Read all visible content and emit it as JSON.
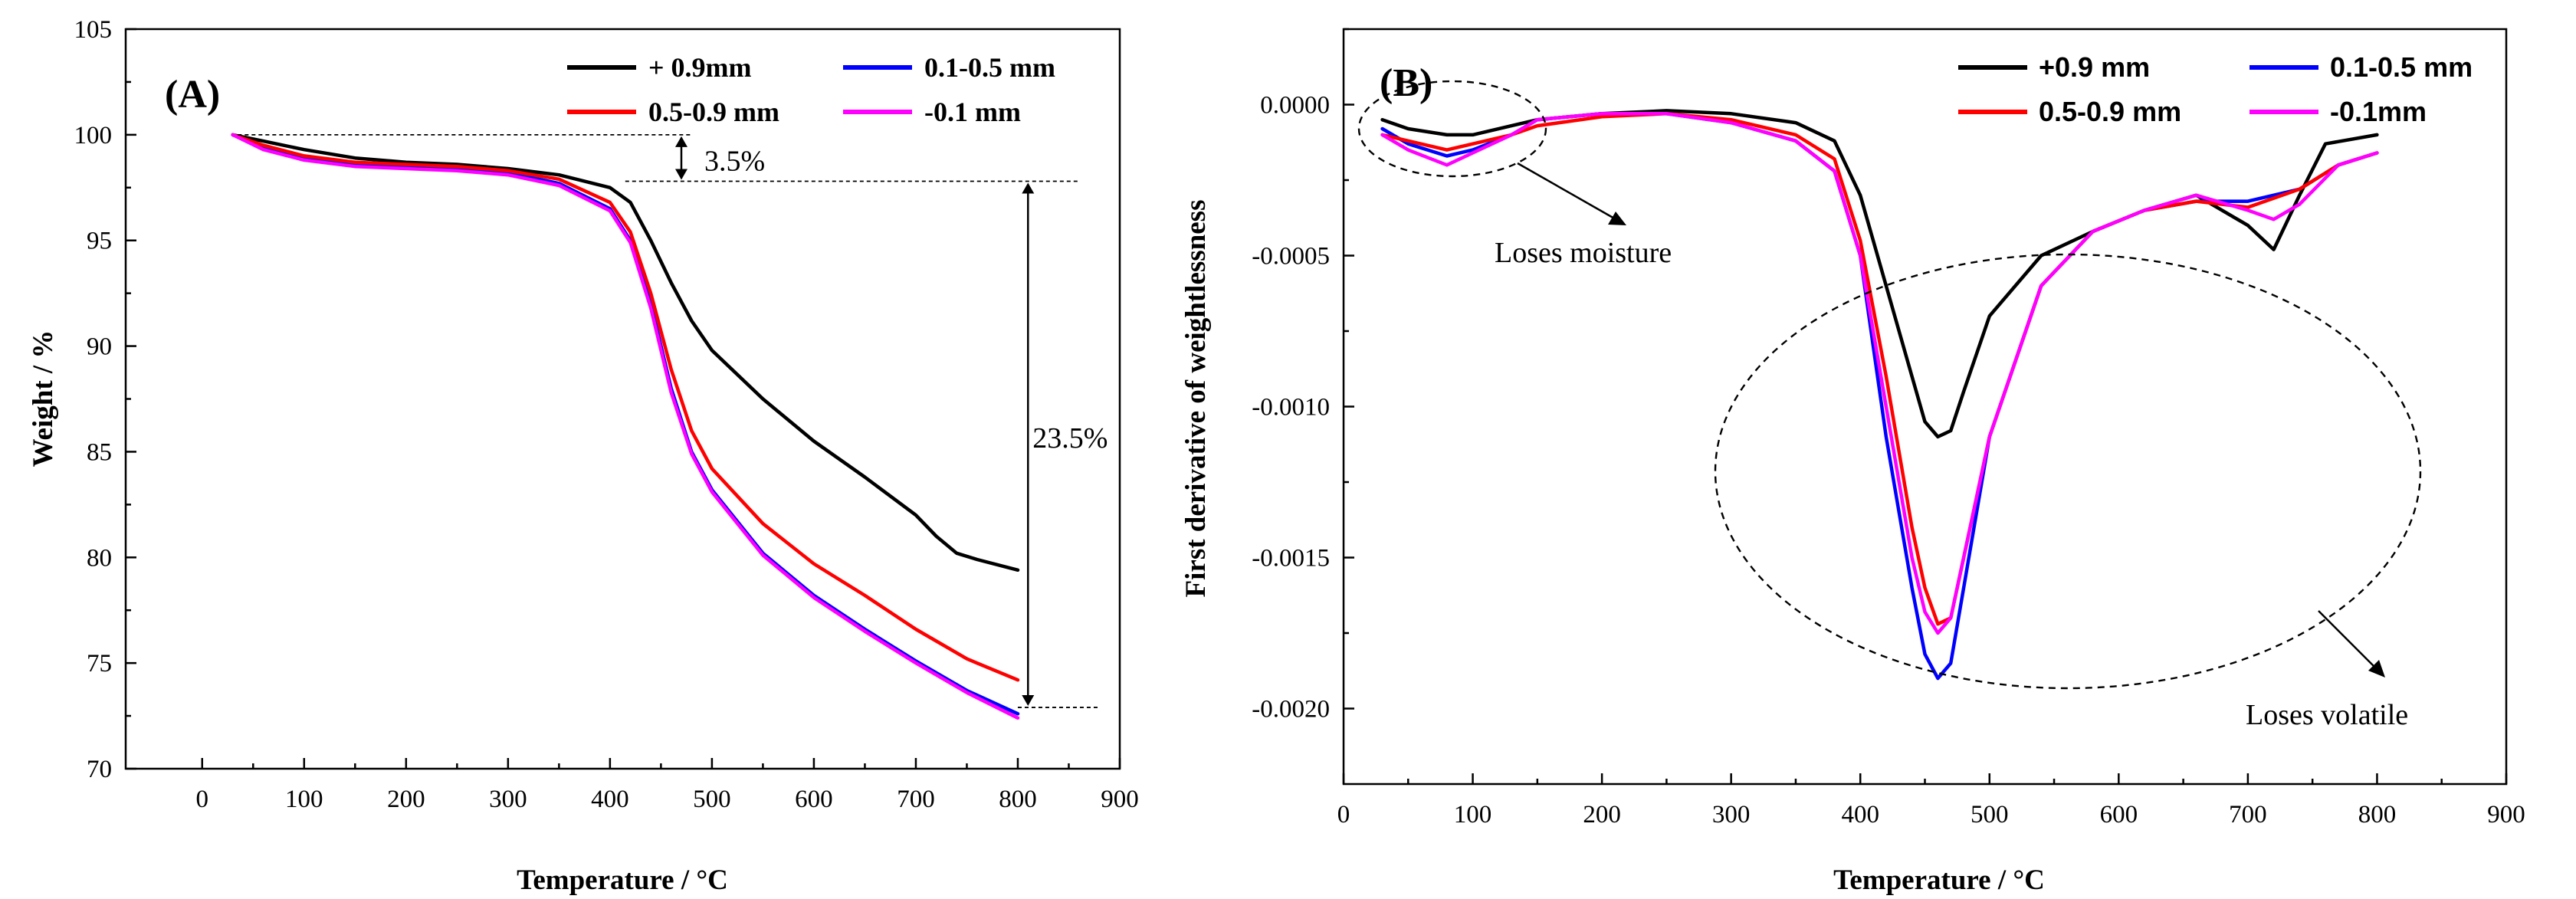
{
  "colors": {
    "black": "#000000",
    "red": "#ff0000",
    "blue": "#0000ff",
    "magenta": "#ff00ff"
  },
  "chart_data": [
    {
      "panel": "(A)",
      "type": "line",
      "xlabel": "Temperature / °C",
      "ylabel": "Weight / %",
      "xlim": [
        -75,
        900
      ],
      "ylim": [
        70,
        105
      ],
      "xticks": [
        0,
        100,
        200,
        300,
        400,
        500,
        600,
        700,
        800,
        900
      ],
      "yticks": [
        70,
        75,
        80,
        85,
        90,
        95,
        100,
        105
      ],
      "annotations": {
        "moisture_loss": "3.5%",
        "volatile_loss": "23.5%"
      },
      "annotation_levels": {
        "start": 100,
        "after_moisture": 97.8,
        "final": 72.9
      },
      "series": [
        {
          "name": "+ 0.9mm",
          "color": "#000000",
          "x": [
            30,
            60,
            100,
            150,
            200,
            250,
            300,
            350,
            400,
            420,
            440,
            460,
            480,
            500,
            550,
            600,
            650,
            700,
            720,
            740,
            760,
            800
          ],
          "y": [
            100,
            99.7,
            99.3,
            98.9,
            98.7,
            98.6,
            98.4,
            98.1,
            97.5,
            96.8,
            95.0,
            93.0,
            91.2,
            89.8,
            87.5,
            85.5,
            83.8,
            82.0,
            81.0,
            80.2,
            79.9,
            79.4
          ]
        },
        {
          "name": "0.1-0.5 mm",
          "color": "#0000ff",
          "x": [
            30,
            60,
            100,
            150,
            200,
            250,
            300,
            350,
            400,
            420,
            440,
            460,
            480,
            500,
            550,
            600,
            650,
            700,
            750,
            800
          ],
          "y": [
            100,
            99.4,
            98.9,
            98.6,
            98.5,
            98.4,
            98.2,
            97.7,
            96.5,
            95.0,
            92.0,
            88.0,
            85.0,
            83.2,
            80.2,
            78.2,
            76.6,
            75.1,
            73.7,
            72.6
          ]
        },
        {
          "name": "0.5-0.9 mm",
          "color": "#ff0000",
          "x": [
            30,
            60,
            100,
            150,
            200,
            250,
            300,
            350,
            400,
            420,
            440,
            460,
            480,
            500,
            550,
            600,
            650,
            700,
            750,
            800
          ],
          "y": [
            100,
            99.5,
            99.0,
            98.7,
            98.6,
            98.5,
            98.3,
            97.9,
            96.8,
            95.4,
            92.5,
            88.9,
            86.0,
            84.2,
            81.6,
            79.7,
            78.2,
            76.6,
            75.2,
            74.2
          ]
        },
        {
          "name": "-0.1 mm",
          "color": "#ff00ff",
          "x": [
            30,
            60,
            100,
            150,
            200,
            250,
            300,
            350,
            400,
            420,
            440,
            460,
            480,
            500,
            550,
            600,
            650,
            700,
            750,
            800
          ],
          "y": [
            100,
            99.3,
            98.8,
            98.5,
            98.4,
            98.3,
            98.1,
            97.6,
            96.4,
            94.9,
            91.8,
            87.8,
            84.9,
            83.1,
            80.1,
            78.1,
            76.5,
            75.0,
            73.6,
            72.4
          ]
        }
      ]
    },
    {
      "panel": "(B)",
      "type": "line",
      "xlabel": "Temperature / °C",
      "ylabel": "First derivative of weightlessness",
      "xlim": [
        0,
        900
      ],
      "ylim": [
        -0.00225,
        0.00025
      ],
      "xticks": [
        0,
        100,
        200,
        300,
        400,
        500,
        600,
        700,
        800,
        900
      ],
      "yticks": [
        0.0,
        -0.0005,
        -0.001,
        -0.0015,
        -0.002
      ],
      "ytick_labels": [
        "0.0000",
        "-0.0005",
        "-0.0010",
        "-0.0015",
        "-0.0020"
      ],
      "annotations": {
        "moisture": "Loses moisture",
        "volatile": "Loses volatile"
      },
      "series": [
        {
          "name": "+0.9 mm",
          "color": "#000000",
          "x": [
            30,
            50,
            80,
            100,
            130,
            150,
            200,
            250,
            300,
            350,
            380,
            400,
            420,
            440,
            450,
            460,
            470,
            480,
            500,
            540,
            580,
            620,
            660,
            700,
            720,
            740,
            760,
            800
          ],
          "y": [
            -5e-05,
            -8e-05,
            -0.0001,
            -0.0001,
            -7e-05,
            -5e-05,
            -3e-05,
            -2e-05,
            -3e-05,
            -6e-05,
            -0.00012,
            -0.0003,
            -0.0006,
            -0.0009,
            -0.00105,
            -0.0011,
            -0.00108,
            -0.00095,
            -0.0007,
            -0.0005,
            -0.00042,
            -0.00035,
            -0.0003,
            -0.0004,
            -0.00048,
            -0.0003,
            -0.00013,
            -0.0001
          ]
        },
        {
          "name": "0.1-0.5 mm",
          "color": "#0000ff",
          "x": [
            30,
            50,
            80,
            100,
            130,
            150,
            200,
            250,
            300,
            350,
            380,
            400,
            420,
            440,
            450,
            460,
            470,
            480,
            500,
            540,
            580,
            620,
            660,
            700,
            740,
            770,
            800
          ],
          "y": [
            -8e-05,
            -0.00013,
            -0.00017,
            -0.00015,
            -0.0001,
            -5e-05,
            -3e-05,
            -3e-05,
            -6e-05,
            -0.00012,
            -0.00022,
            -0.0005,
            -0.0011,
            -0.0016,
            -0.00182,
            -0.0019,
            -0.00185,
            -0.0016,
            -0.0011,
            -0.0006,
            -0.00042,
            -0.00035,
            -0.00032,
            -0.00032,
            -0.00028,
            -0.0002,
            -0.00016
          ]
        },
        {
          "name": "0.5-0.9 mm",
          "color": "#ff0000",
          "x": [
            30,
            50,
            80,
            100,
            130,
            150,
            200,
            250,
            300,
            350,
            380,
            400,
            420,
            440,
            450,
            460,
            470,
            480,
            500,
            540,
            580,
            620,
            660,
            700,
            740,
            770,
            800
          ],
          "y": [
            -0.0001,
            -0.00012,
            -0.00015,
            -0.00013,
            -0.0001,
            -7e-05,
            -4e-05,
            -3e-05,
            -5e-05,
            -0.0001,
            -0.00018,
            -0.00045,
            -0.0009,
            -0.0014,
            -0.0016,
            -0.00172,
            -0.0017,
            -0.0015,
            -0.0011,
            -0.0006,
            -0.00042,
            -0.00035,
            -0.00032,
            -0.00034,
            -0.00028,
            -0.0002,
            -0.00016
          ]
        },
        {
          "name": "-0.1mm",
          "color": "#ff00ff",
          "x": [
            30,
            50,
            80,
            100,
            130,
            150,
            200,
            250,
            300,
            350,
            380,
            400,
            420,
            440,
            450,
            460,
            470,
            480,
            500,
            540,
            580,
            620,
            660,
            700,
            720,
            740,
            770,
            800
          ],
          "y": [
            -0.0001,
            -0.00015,
            -0.0002,
            -0.00016,
            -0.0001,
            -5e-05,
            -3e-05,
            -3e-05,
            -6e-05,
            -0.00012,
            -0.00022,
            -0.0005,
            -0.001,
            -0.0015,
            -0.00168,
            -0.00175,
            -0.0017,
            -0.0015,
            -0.0011,
            -0.0006,
            -0.00042,
            -0.00035,
            -0.0003,
            -0.00035,
            -0.00038,
            -0.00033,
            -0.0002,
            -0.00016
          ]
        }
      ]
    }
  ]
}
